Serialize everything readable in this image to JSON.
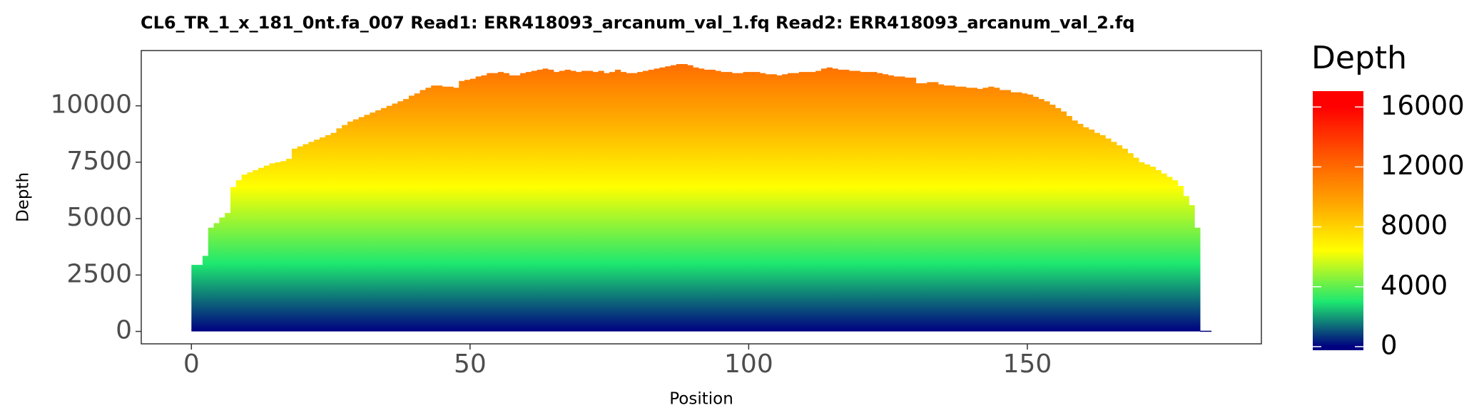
{
  "chart_data": {
    "type": "bar",
    "title": "CL6_TR_1_x_181_0nt.fa_007   Read1: ERR418093_arcanum_val_1.fq   Read2: ERR418093_arcanum_val_2.fq",
    "x_label": "Position",
    "y_label": "Depth",
    "legend_title": "Depth",
    "x": [
      0,
      1,
      2,
      3,
      4,
      5,
      6,
      7,
      8,
      9,
      10,
      11,
      12,
      13,
      14,
      15,
      16,
      17,
      18,
      19,
      20,
      21,
      22,
      23,
      24,
      25,
      26,
      27,
      28,
      29,
      30,
      31,
      32,
      33,
      34,
      35,
      36,
      37,
      38,
      39,
      40,
      41,
      42,
      43,
      44,
      45,
      46,
      47,
      48,
      49,
      50,
      51,
      52,
      53,
      54,
      55,
      56,
      57,
      58,
      59,
      60,
      61,
      62,
      63,
      64,
      65,
      66,
      67,
      68,
      69,
      70,
      71,
      72,
      73,
      74,
      75,
      76,
      77,
      78,
      79,
      80,
      81,
      82,
      83,
      84,
      85,
      86,
      87,
      88,
      89,
      90,
      91,
      92,
      93,
      94,
      95,
      96,
      97,
      98,
      99,
      100,
      101,
      102,
      103,
      104,
      105,
      106,
      107,
      108,
      109,
      110,
      111,
      112,
      113,
      114,
      115,
      116,
      117,
      118,
      119,
      120,
      121,
      122,
      123,
      124,
      125,
      126,
      127,
      128,
      129,
      130,
      131,
      132,
      133,
      134,
      135,
      136,
      137,
      138,
      139,
      140,
      141,
      142,
      143,
      144,
      145,
      146,
      147,
      148,
      149,
      150,
      151,
      152,
      153,
      154,
      155,
      156,
      157,
      158,
      159,
      160,
      161,
      162,
      163,
      164,
      165,
      166,
      167,
      168,
      169,
      170,
      171,
      172,
      173,
      174,
      175,
      176,
      177,
      178,
      179,
      180,
      181,
      182
    ],
    "values": [
      2950,
      2950,
      3350,
      4600,
      4800,
      5050,
      5250,
      6400,
      6700,
      6950,
      7050,
      7150,
      7250,
      7350,
      7450,
      7500,
      7550,
      7650,
      8100,
      8200,
      8300,
      8400,
      8500,
      8600,
      8700,
      8800,
      9000,
      9150,
      9300,
      9400,
      9500,
      9600,
      9700,
      9800,
      9900,
      10000,
      10100,
      10200,
      10300,
      10450,
      10550,
      10700,
      10800,
      10900,
      10900,
      10850,
      10850,
      10800,
      11100,
      11150,
      11200,
      11300,
      11350,
      11450,
      11450,
      11500,
      11450,
      11350,
      11350,
      11450,
      11500,
      11550,
      11600,
      11650,
      11600,
      11500,
      11550,
      11600,
      11550,
      11500,
      11550,
      11550,
      11500,
      11550,
      11450,
      11500,
      11600,
      11500,
      11450,
      11450,
      11500,
      11550,
      11600,
      11650,
      11700,
      11750,
      11800,
      11850,
      11850,
      11800,
      11700,
      11650,
      11600,
      11600,
      11550,
      11500,
      11500,
      11450,
      11450,
      11500,
      11500,
      11500,
      11450,
      11400,
      11400,
      11350,
      11400,
      11450,
      11450,
      11500,
      11500,
      11500,
      11550,
      11650,
      11700,
      11650,
      11600,
      11600,
      11550,
      11550,
      11500,
      11500,
      11500,
      11450,
      11400,
      11350,
      11300,
      11300,
      11250,
      11250,
      11000,
      11000,
      11050,
      11050,
      10950,
      10900,
      10900,
      10850,
      10850,
      10800,
      10800,
      10750,
      10800,
      10850,
      10800,
      10700,
      10700,
      10600,
      10600,
      10550,
      10500,
      10400,
      10300,
      10200,
      10050,
      9900,
      9750,
      9550,
      9350,
      9200,
      9050,
      8950,
      8800,
      8700,
      8550,
      8400,
      8250,
      8100,
      7900,
      7700,
      7500,
      7400,
      7300,
      7150,
      7000,
      6850,
      6700,
      6450,
      6000,
      5600,
      4600,
      30,
      30
    ],
    "xlim": [
      -9,
      192
    ],
    "xticks": [
      0,
      50,
      100,
      150
    ],
    "ylim": [
      -550,
      12450
    ],
    "yticks": [
      0,
      2500,
      5000,
      7500,
      10000
    ],
    "colorscale": [
      {
        "value": 0,
        "color": "#000080"
      },
      {
        "value": 3000,
        "color": "#1de870"
      },
      {
        "value": 6400,
        "color": "#ffff00"
      },
      {
        "value": 9600,
        "color": "#ffa500"
      },
      {
        "value": 12000,
        "color": "#ff6a00"
      },
      {
        "value": 16000,
        "color": "#ff0000"
      }
    ],
    "colorbar_lim": [
      -240,
      17060
    ],
    "colorbar_ticks": [
      0,
      4000,
      8000,
      12000,
      16000
    ],
    "grid": false
  }
}
